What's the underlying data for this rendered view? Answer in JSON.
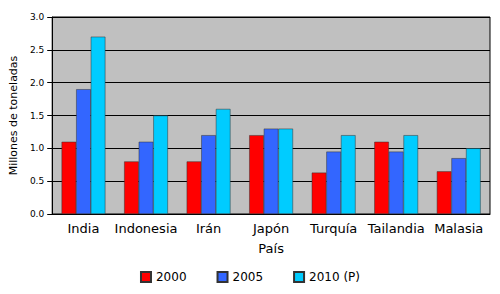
{
  "chart_data": {
    "type": "bar",
    "x_label": "País",
    "y_label": "Millones de toneladas",
    "categories": [
      "India",
      "Indonesia",
      "Irán",
      "Japón",
      "Turquía",
      "Tailandia",
      "Malasia"
    ],
    "series": [
      {
        "name": "2000",
        "color": "#ff0000",
        "values": [
          1.1,
          0.8,
          0.8,
          1.2,
          0.63,
          1.1,
          0.65
        ]
      },
      {
        "name": "2005",
        "color": "#3366ff",
        "values": [
          1.9,
          1.1,
          1.2,
          1.3,
          0.95,
          0.95,
          0.85
        ]
      },
      {
        "name": "2010 (P)",
        "color": "#00ccff",
        "values": [
          2.7,
          1.5,
          1.6,
          1.3,
          1.2,
          1.2,
          1.0
        ]
      }
    ],
    "ylim": [
      0,
      3
    ],
    "yticks": [
      {
        "value": 0,
        "label": "0.0"
      },
      0.5,
      {
        "value": 1,
        "label": "1.0"
      },
      1.5,
      {
        "value": 2,
        "label": "2.0"
      },
      2.5,
      {
        "value": 3,
        "label": "3.0"
      }
    ],
    "grid": true,
    "legend": "bottom"
  }
}
